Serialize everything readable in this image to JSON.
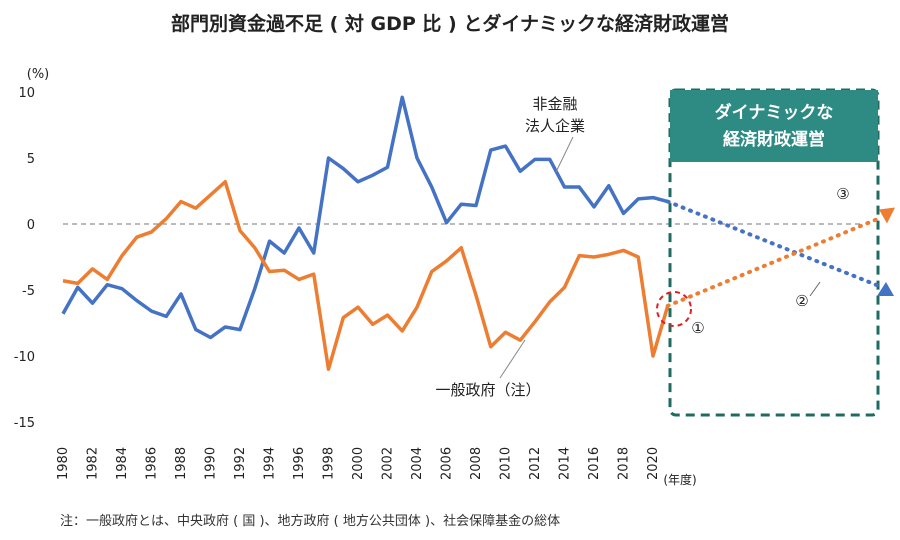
{
  "chart_data": {
    "type": "line",
    "title": "部門別資金過不足 ( 対 GDP 比 ) とダイナミックな経済財政運営",
    "ylabel": "(%)",
    "xlabel": "(年度)",
    "ylim": [
      -15,
      10
    ],
    "yticks": [
      10,
      5,
      0,
      -5,
      -10,
      -15
    ],
    "x": [
      1980,
      1981,
      1982,
      1983,
      1984,
      1985,
      1986,
      1987,
      1988,
      1989,
      1990,
      1991,
      1992,
      1993,
      1994,
      1995,
      1996,
      1997,
      1998,
      1999,
      2000,
      2001,
      2002,
      2003,
      2004,
      2005,
      2006,
      2007,
      2008,
      2009,
      2010,
      2011,
      2012,
      2013,
      2014,
      2015,
      2016,
      2017,
      2018,
      2019,
      2020,
      2021
    ],
    "xticks": [
      1980,
      1982,
      1984,
      1986,
      1988,
      1990,
      1992,
      1994,
      1996,
      1998,
      2000,
      2002,
      2004,
      2006,
      2008,
      2010,
      2012,
      2014,
      2016,
      2018,
      2020
    ],
    "series": [
      {
        "name": "非金融法人企業",
        "label_lines": [
          "非金融",
          "法人企業"
        ],
        "color": "#4472c4",
        "values": [
          -6.8,
          -4.8,
          -6.0,
          -4.6,
          -4.9,
          -5.8,
          -6.6,
          -7.0,
          -5.3,
          -8.0,
          -8.6,
          -7.8,
          -8.0,
          -4.9,
          -1.3,
          -2.2,
          -0.3,
          -2.2,
          5.0,
          4.2,
          3.2,
          3.7,
          4.3,
          9.6,
          5.0,
          2.8,
          0.1,
          1.5,
          1.4,
          5.6,
          5.9,
          4.0,
          4.9,
          4.9,
          2.8,
          2.8,
          1.3,
          2.9,
          0.8,
          1.9,
          2.0,
          1.7
        ]
      },
      {
        "name": "一般政府（注）",
        "label_lines": [
          "一般政府（注）"
        ],
        "color": "#ed7d31",
        "values": [
          -4.3,
          -4.5,
          -3.4,
          -4.2,
          -2.4,
          -1.0,
          -0.6,
          0.4,
          1.7,
          1.2,
          2.2,
          3.2,
          -0.5,
          -1.8,
          -3.6,
          -3.5,
          -4.2,
          -3.8,
          -11.0,
          -7.1,
          -6.3,
          -7.6,
          -6.9,
          -8.1,
          -6.3,
          -3.6,
          -2.8,
          -1.8,
          -5.4,
          -9.3,
          -8.2,
          -8.8,
          -7.4,
          -5.9,
          -4.8,
          -2.4,
          -2.5,
          -2.3,
          -2.0,
          -2.5,
          -10.0,
          -6.2
        ]
      }
    ],
    "projection": {
      "corporate": {
        "from": [
          2021,
          1.7
        ],
        "to": [
          2036,
          -5.0
        ]
      },
      "government": {
        "from": [
          2021,
          -6.2
        ],
        "to": [
          2036,
          0.8
        ]
      }
    },
    "annotation_box": {
      "lines": [
        "ダイナミックな",
        "経済財政運営"
      ],
      "color": "#2e8b84"
    },
    "markers": [
      "①",
      "②",
      "③"
    ],
    "note": "注：一般政府とは、中央政府 ( 国 )、地方政府 ( 地方公共団体 )、社会保障基金の総体"
  }
}
